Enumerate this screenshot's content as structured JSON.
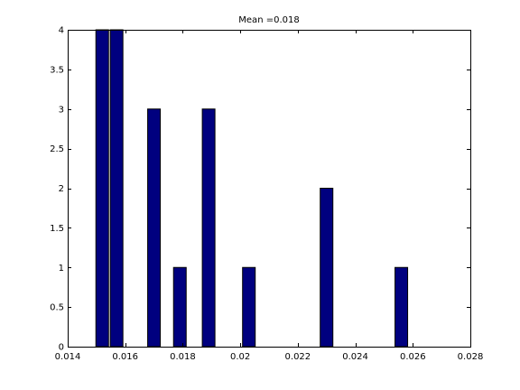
{
  "chart_data": {
    "type": "bar",
    "title": "Mean =0.018",
    "xlabel": "",
    "ylabel": "",
    "xlim": [
      0.014,
      0.028
    ],
    "ylim": [
      0,
      4
    ],
    "x_ticks": [
      0.014,
      0.016,
      0.018,
      0.02,
      0.022,
      0.024,
      0.026,
      0.028
    ],
    "x_tick_labels": [
      "0.014",
      "0.016",
      "0.018",
      "0.02",
      "0.022",
      "0.024",
      "0.026",
      "0.028"
    ],
    "y_ticks": [
      0,
      0.5,
      1,
      1.5,
      2,
      2.5,
      3,
      3.5,
      4
    ],
    "y_tick_labels": [
      "0",
      "0.5",
      "1",
      "1.5",
      "2",
      "2.5",
      "3",
      "3.5",
      "4"
    ],
    "grid": false,
    "bar_color": "#00007f",
    "bars": [
      {
        "x": 0.0152,
        "value": 4
      },
      {
        "x": 0.0157,
        "value": 4
      },
      {
        "x": 0.017,
        "value": 3
      },
      {
        "x": 0.0179,
        "value": 1
      },
      {
        "x": 0.0189,
        "value": 3
      },
      {
        "x": 0.0203,
        "value": 1
      },
      {
        "x": 0.023,
        "value": 2
      },
      {
        "x": 0.0256,
        "value": 1
      }
    ],
    "bar_width": 0.00044
  }
}
